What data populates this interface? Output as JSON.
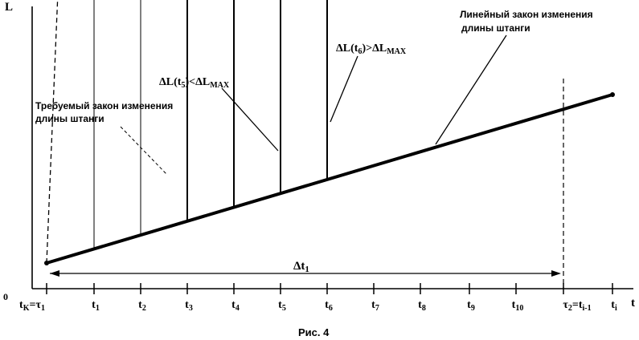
{
  "figure": {
    "caption": "Рис. 4",
    "y_axis_label": "L",
    "x_axis_label": "t",
    "origin_label": "0",
    "ticks": [
      {
        "main": "t",
        "sub": "K",
        "tail": "=τ",
        "tailsub": "1"
      },
      {
        "main": "t",
        "sub": "1"
      },
      {
        "main": "t",
        "sub": "2"
      },
      {
        "main": "t",
        "sub": "3"
      },
      {
        "main": "t",
        "sub": "4"
      },
      {
        "main": "t",
        "sub": "5"
      },
      {
        "main": "t",
        "sub": "6"
      },
      {
        "main": "t",
        "sub": "7"
      },
      {
        "main": "t",
        "sub": "8"
      },
      {
        "main": "t",
        "sub": "9"
      },
      {
        "main": "t",
        "sub": "10"
      },
      {
        "main": "τ",
        "sub": "2",
        "tail": "=t",
        "tailsub": "i-1"
      },
      {
        "main": "t",
        "sub": "i"
      }
    ],
    "interval_label": {
      "main": "Δt",
      "sub": "1"
    },
    "annotations": {
      "required_law": [
        "Требуемый закон изменения",
        "длины штанги"
      ],
      "linear_law": [
        "Линейный закон изменения",
        "длины штанги"
      ],
      "delta_t5": {
        "a": "ΔL(t",
        "asub": "5",
        "b": ")<ΔL",
        "bsub": "MAX"
      },
      "delta_t6": {
        "a": "ΔL(t",
        "asub": "6",
        "b": ")>ΔL",
        "bsub": "MAX"
      }
    }
  }
}
